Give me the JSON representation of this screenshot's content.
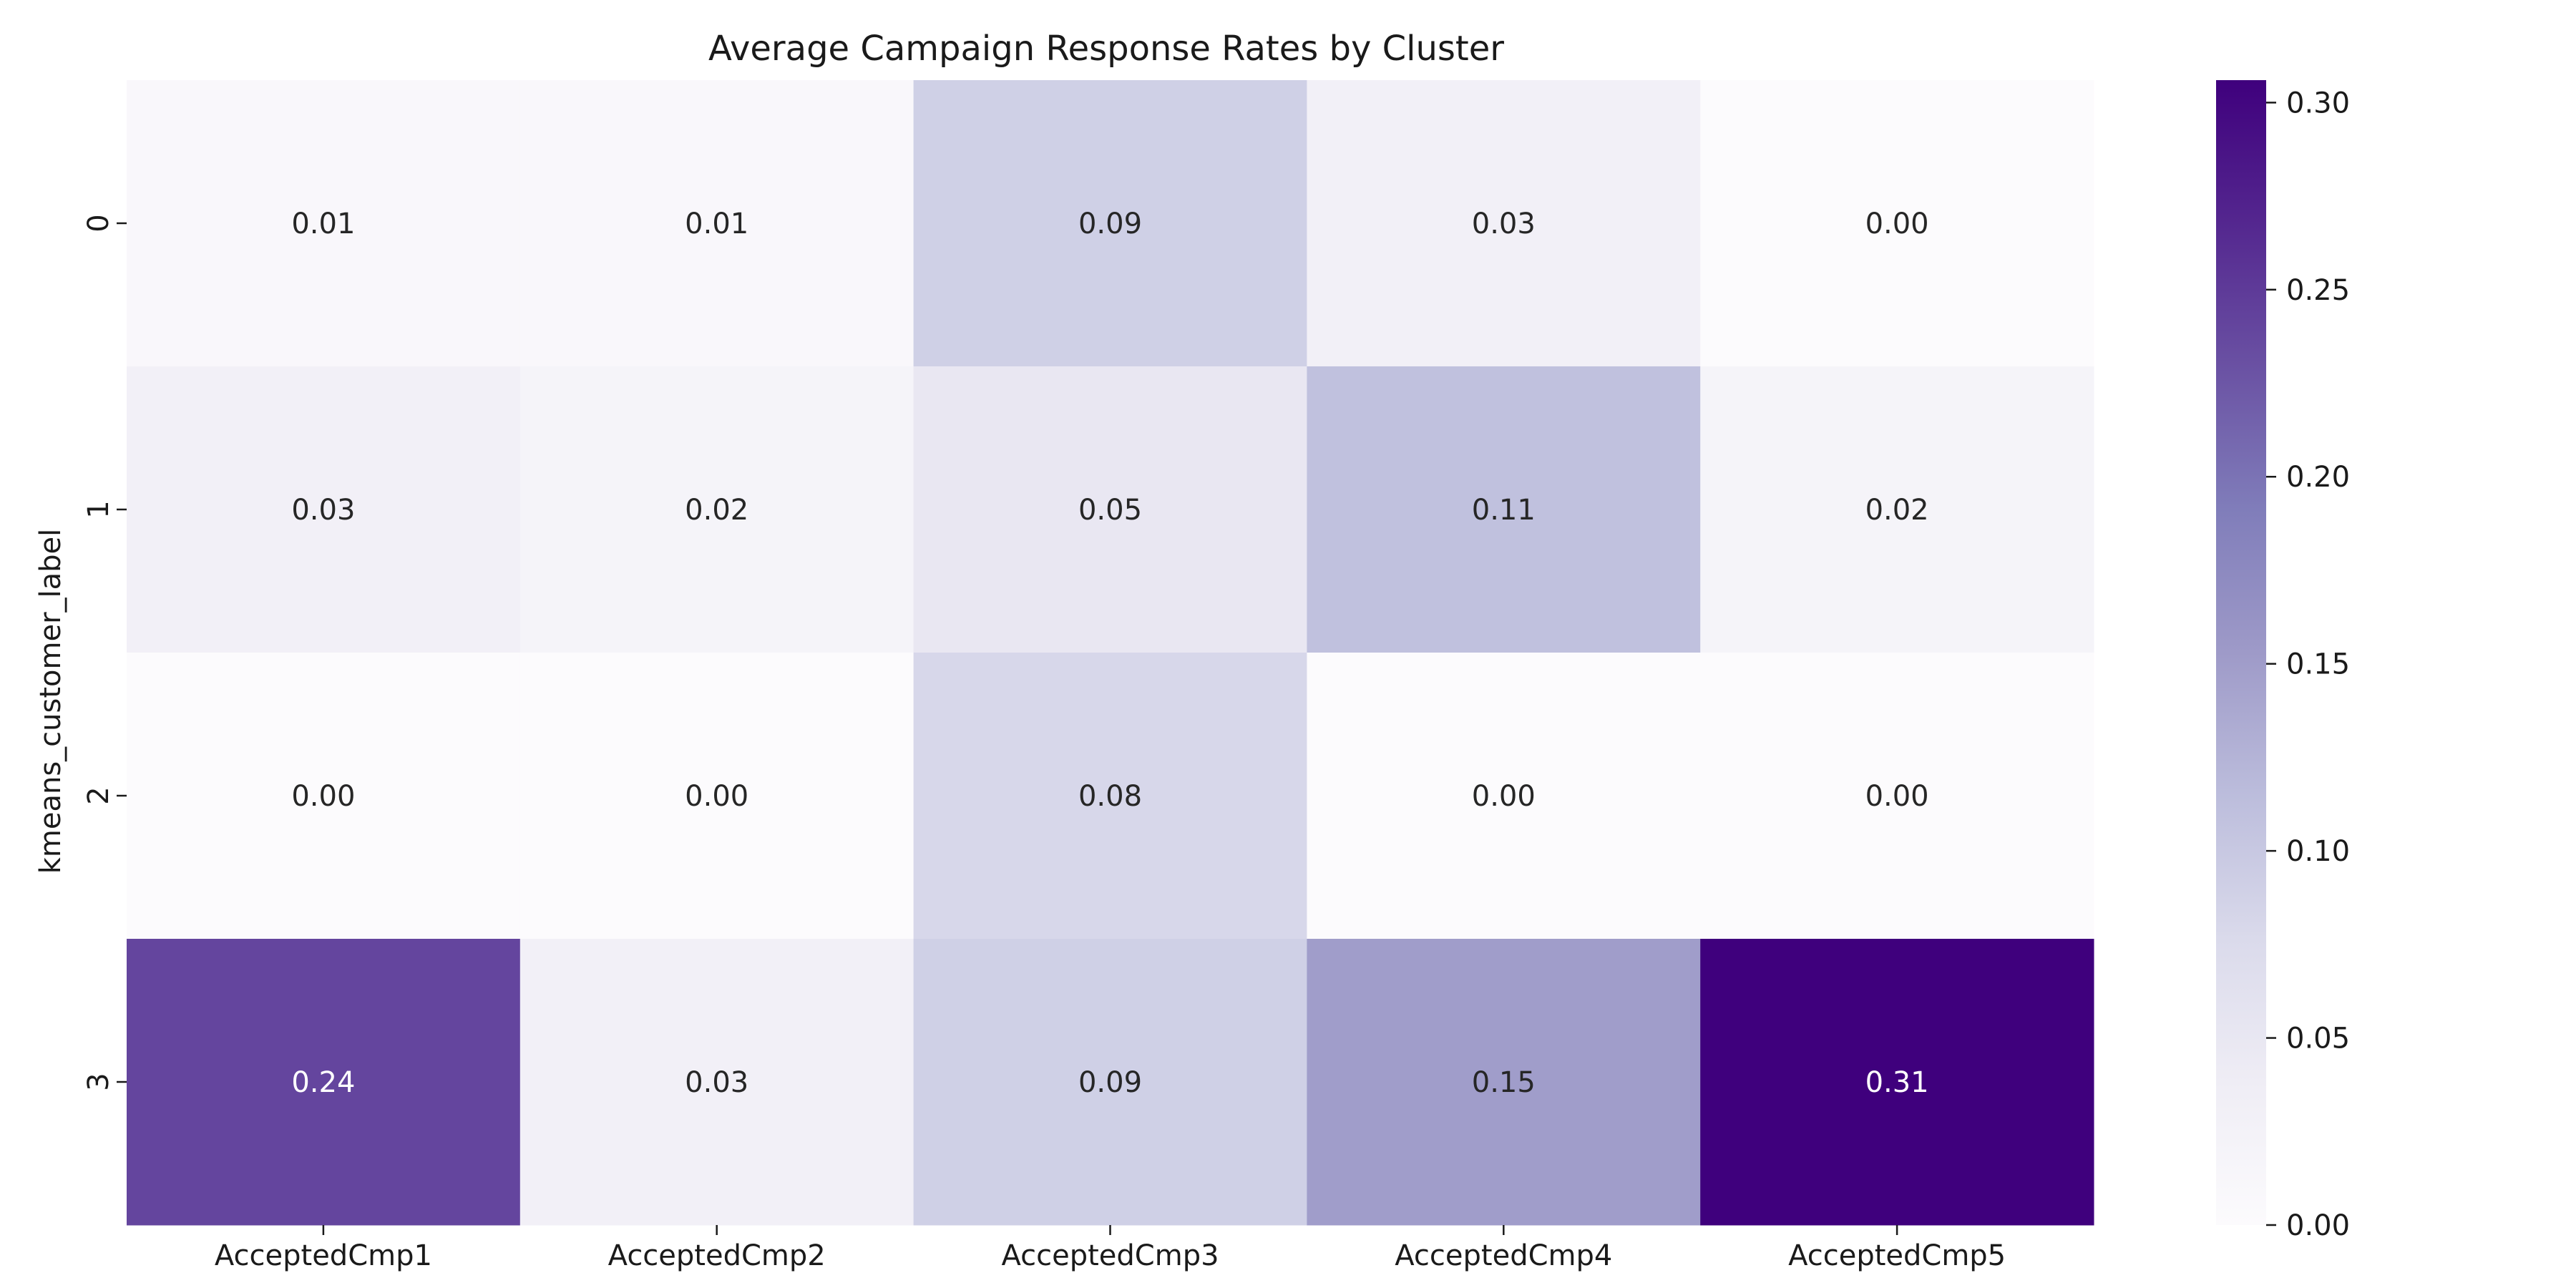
{
  "chart_data": {
    "type": "heatmap",
    "title": "Average Campaign Response Rates by Cluster",
    "xlabel": "",
    "ylabel": "kmeans_customer_label",
    "x_categories": [
      "AcceptedCmp1",
      "AcceptedCmp2",
      "AcceptedCmp3",
      "AcceptedCmp4",
      "AcceptedCmp5"
    ],
    "y_categories": [
      "0",
      "1",
      "2",
      "3"
    ],
    "values": [
      [
        0.01,
        0.01,
        0.09,
        0.03,
        0.0
      ],
      [
        0.03,
        0.02,
        0.05,
        0.11,
        0.02
      ],
      [
        0.0,
        0.0,
        0.08,
        0.0,
        0.0
      ],
      [
        0.24,
        0.03,
        0.09,
        0.15,
        0.31
      ]
    ],
    "value_labels": [
      [
        "0.01",
        "0.01",
        "0.09",
        "0.03",
        "0.00"
      ],
      [
        "0.03",
        "0.02",
        "0.05",
        "0.11",
        "0.02"
      ],
      [
        "0.00",
        "0.00",
        "0.08",
        "0.00",
        "0.00"
      ],
      [
        "0.24",
        "0.03",
        "0.09",
        "0.15",
        "0.31"
      ]
    ],
    "colormap": "Purples",
    "colormap_low": "#fcfbfd",
    "colormap_high": "#3f007d",
    "colorbar": {
      "vmin": 0.0,
      "vmax": 0.306,
      "ticks": [
        0.0,
        0.05,
        0.1,
        0.15,
        0.2,
        0.25,
        0.3
      ],
      "tick_labels": [
        "0.00",
        "0.05",
        "0.10",
        "0.15",
        "0.20",
        "0.25",
        "0.30"
      ],
      "placement": "right"
    }
  }
}
